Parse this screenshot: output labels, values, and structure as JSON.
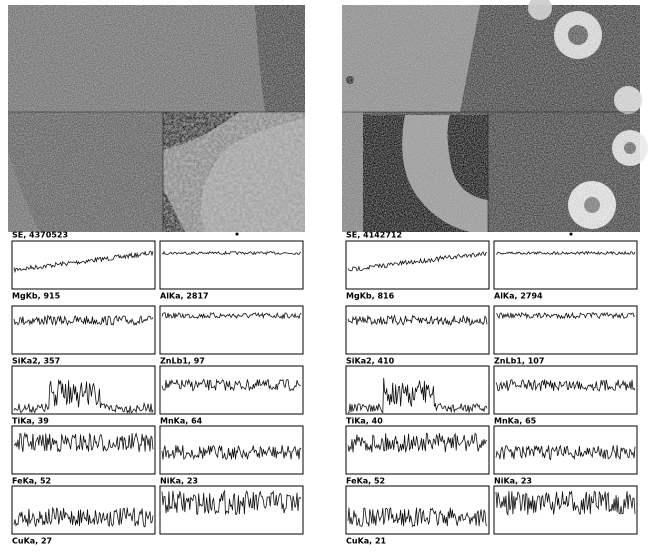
{
  "panels": [
    {
      "image_label": "SE, 4370523",
      "plot_labels": [
        "MgKb, 915",
        "AlKa, 2817",
        "SiKa2, 357",
        "ZnLb1, 97",
        "TiKa, 39",
        "MnKa, 64",
        "FeKa, 52",
        "NiKa, 23",
        "CuKa, 27"
      ]
    },
    {
      "image_label": "SE, 4142712",
      "plot_labels": [
        "MgKb, 816",
        "AlKa, 2794",
        "SiKa2, 410",
        "ZnLb1, 107",
        "TiKa, 40",
        "MnKa, 65",
        "FeKa, 52",
        "NiKa, 23",
        "CuKa, 21"
      ]
    }
  ]
}
